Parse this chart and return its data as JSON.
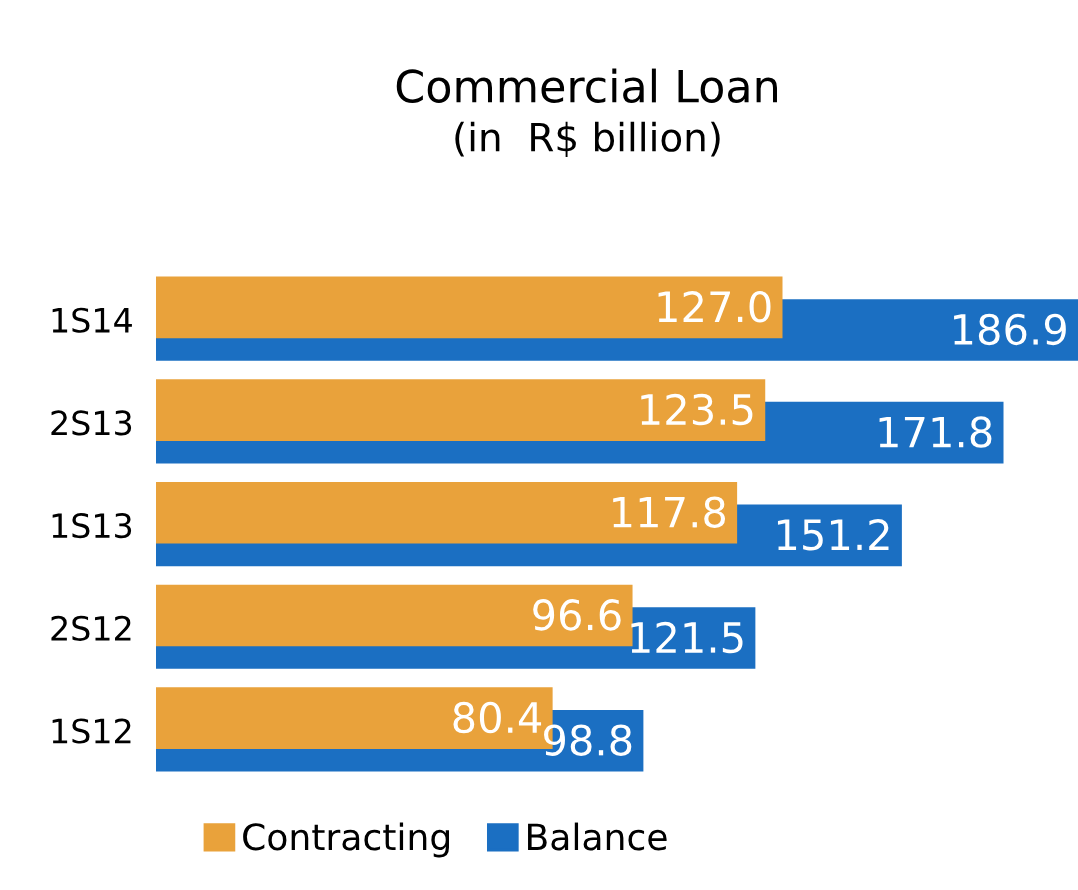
{
  "chart_data": {
    "type": "bar",
    "orientation": "horizontal",
    "title": "Commercial Loan",
    "subtitle": "(in  R$ billion)",
    "categories": [
      "1S14",
      "2S13",
      "1S13",
      "2S12",
      "1S12"
    ],
    "series": [
      {
        "name": "Contracting",
        "color": "#e9a23b",
        "values": [
          127.0,
          123.5,
          117.8,
          96.6,
          80.4
        ],
        "value_labels": [
          "127.0",
          "123.5",
          "117.8",
          "96.6",
          "80.4"
        ]
      },
      {
        "name": "Balance",
        "color": "#1b6fc2",
        "values": [
          186.9,
          171.8,
          151.2,
          121.5,
          98.8
        ],
        "value_labels": [
          "186.9",
          "171.8",
          "151.2",
          "121.5",
          "98.8"
        ]
      }
    ],
    "legend": "bottom",
    "grid": false
  }
}
